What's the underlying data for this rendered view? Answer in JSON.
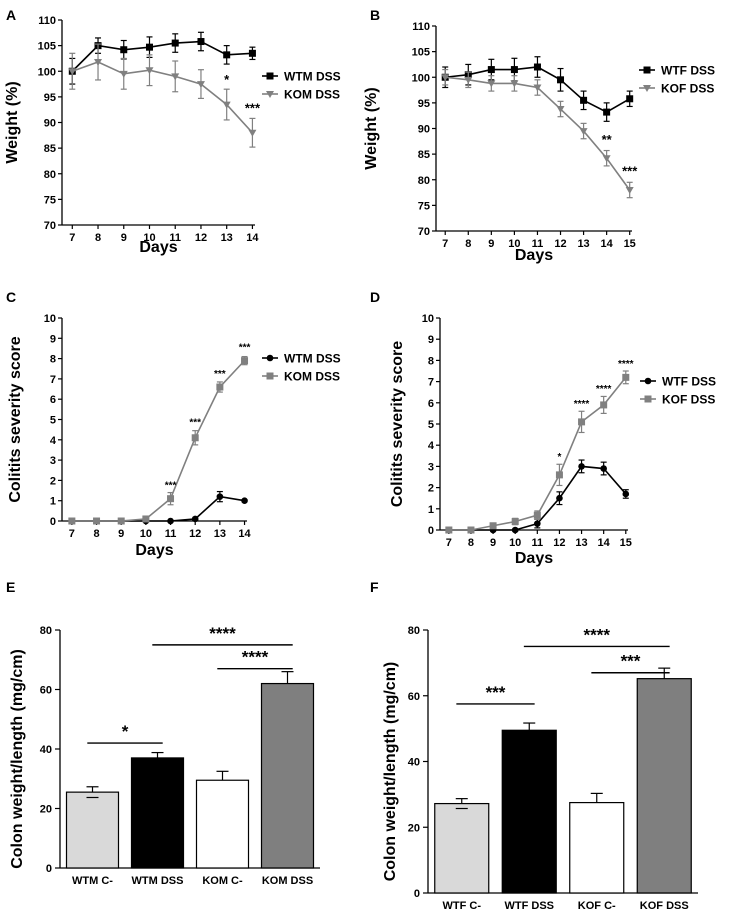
{
  "colors": {
    "black": "#000000",
    "gray": "#808080",
    "light_gray": "#d9d9d9",
    "white": "#ffffff",
    "mid_gray": "#7f7f7f"
  },
  "chart_data": [
    {
      "panel": "A",
      "type": "line",
      "xlabel": "Days",
      "ylabel": "Weight (%)",
      "x": [
        7,
        8,
        9,
        10,
        11,
        12,
        13,
        14
      ],
      "xticks": [
        7,
        8,
        9,
        10,
        11,
        12,
        13,
        14
      ],
      "yticks": [
        70,
        75,
        80,
        85,
        90,
        95,
        100,
        105,
        110
      ],
      "ylim": [
        70,
        110
      ],
      "series": [
        {
          "name": "WTM DSS",
          "color": "#000000",
          "marker": "square",
          "values": [
            100,
            105,
            104.2,
            104.7,
            105.5,
            105.8,
            103.2,
            103.5
          ],
          "errors": [
            2.5,
            1.5,
            1.8,
            2.0,
            1.8,
            1.8,
            1.8,
            1.2
          ]
        },
        {
          "name": "KOM DSS",
          "color": "#808080",
          "marker": "triangle-down",
          "values": [
            100,
            101.8,
            99.5,
            100.2,
            99.0,
            97.5,
            93.5,
            88.0
          ],
          "errors": [
            3.5,
            3.5,
            3.0,
            3.0,
            3.0,
            2.8,
            3.0,
            2.8
          ]
        }
      ],
      "annotations": [
        {
          "x": 13,
          "y": 97.5,
          "text": "*"
        },
        {
          "x": 14,
          "y": 92,
          "text": "***"
        }
      ]
    },
    {
      "panel": "B",
      "type": "line",
      "xlabel": "Days",
      "ylabel": "Weight (%)",
      "x": [
        7,
        8,
        9,
        10,
        11,
        12,
        13,
        14,
        15
      ],
      "xticks": [
        7,
        8,
        9,
        10,
        11,
        12,
        13,
        14,
        15
      ],
      "yticks": [
        70,
        75,
        80,
        85,
        90,
        95,
        100,
        105,
        110
      ],
      "ylim": [
        70,
        110
      ],
      "series": [
        {
          "name": "WTF DSS",
          "color": "#000000",
          "marker": "square",
          "values": [
            100,
            100.5,
            101.5,
            101.5,
            102,
            99.5,
            95.5,
            93.2,
            95.8
          ],
          "errors": [
            2.0,
            2.0,
            2.0,
            2.2,
            2.0,
            2.2,
            1.8,
            1.8,
            1.5
          ]
        },
        {
          "name": "KOF DSS",
          "color": "#808080",
          "marker": "triangle-down",
          "values": [
            100,
            99.5,
            98.8,
            98.8,
            98.0,
            93.8,
            89.5,
            84.2,
            78.0
          ],
          "errors": [
            1.5,
            1.5,
            1.5,
            1.5,
            1.5,
            1.5,
            1.5,
            1.5,
            1.5
          ]
        }
      ],
      "annotations": [
        {
          "x": 14,
          "y": 87,
          "text": "**"
        },
        {
          "x": 15,
          "y": 80.8,
          "text": "***"
        }
      ]
    },
    {
      "panel": "C",
      "type": "line",
      "xlabel": "Days",
      "ylabel": "Colitits severity score",
      "x": [
        7,
        8,
        9,
        10,
        11,
        12,
        13,
        14
      ],
      "xticks": [
        7,
        8,
        9,
        10,
        11,
        12,
        13,
        14
      ],
      "yticks": [
        0,
        1,
        2,
        3,
        4,
        5,
        6,
        7,
        8,
        9,
        10
      ],
      "ylim": [
        0,
        10
      ],
      "series": [
        {
          "name": "WTM DSS",
          "color": "#000000",
          "marker": "circle",
          "values": [
            0,
            0,
            0,
            0,
            0,
            0.1,
            1.2,
            1.0
          ],
          "errors": [
            0,
            0,
            0,
            0,
            0,
            0.05,
            0.25,
            0.05
          ]
        },
        {
          "name": "KOM DSS",
          "color": "#808080",
          "marker": "square",
          "values": [
            0,
            0,
            0,
            0.1,
            1.1,
            4.1,
            6.6,
            7.9
          ],
          "errors": [
            0,
            0,
            0,
            0.1,
            0.3,
            0.35,
            0.25,
            0.2
          ]
        }
      ],
      "annotations": [
        {
          "x": 11,
          "y": 1.6,
          "text": "***"
        },
        {
          "x": 12,
          "y": 4.7,
          "text": "***"
        },
        {
          "x": 13,
          "y": 7.1,
          "text": "***"
        },
        {
          "x": 14,
          "y": 8.4,
          "text": "***"
        }
      ]
    },
    {
      "panel": "D",
      "type": "line",
      "xlabel": "Days",
      "ylabel": "Colitits severity score",
      "x": [
        7,
        8,
        9,
        10,
        11,
        12,
        13,
        14,
        15
      ],
      "xticks": [
        7,
        8,
        9,
        10,
        11,
        12,
        13,
        14,
        15
      ],
      "yticks": [
        0,
        1,
        2,
        3,
        4,
        5,
        6,
        7,
        8,
        9,
        10
      ],
      "ylim": [
        0,
        10
      ],
      "series": [
        {
          "name": "WTF DSS",
          "color": "#000000",
          "marker": "circle",
          "values": [
            0,
            0,
            0,
            0,
            0.3,
            1.5,
            3.0,
            2.9,
            1.7
          ],
          "errors": [
            0,
            0,
            0.05,
            0.05,
            0.2,
            0.3,
            0.3,
            0.3,
            0.2
          ]
        },
        {
          "name": "KOF DSS",
          "color": "#808080",
          "marker": "square",
          "values": [
            0,
            0,
            0.2,
            0.4,
            0.7,
            2.6,
            5.1,
            5.9,
            7.2
          ],
          "errors": [
            0,
            0,
            0.1,
            0.15,
            0.2,
            0.5,
            0.5,
            0.4,
            0.3
          ]
        }
      ],
      "annotations": [
        {
          "x": 12,
          "y": 3.3,
          "text": "*"
        },
        {
          "x": 13,
          "y": 5.8,
          "text": "****"
        },
        {
          "x": 14,
          "y": 6.5,
          "text": "****"
        },
        {
          "x": 15,
          "y": 7.7,
          "text": "****"
        }
      ]
    },
    {
      "panel": "E",
      "type": "bar",
      "ylabel": "Colon weight/length (mg/cm)",
      "categories": [
        "WTM C-",
        "WTM DSS",
        "KOM C-",
        "KOM DSS"
      ],
      "values": [
        25.5,
        37.0,
        29.5,
        62.0
      ],
      "errors": [
        1.8,
        1.8,
        3.0,
        4.0
      ],
      "fills": [
        "#d9d9d9",
        "#000000",
        "#ffffff",
        "#7f7f7f"
      ],
      "yticks": [
        0,
        20,
        40,
        60,
        80
      ],
      "ylim": [
        0,
        80
      ],
      "brackets": [
        {
          "from": 0,
          "to": 1,
          "y": 42,
          "text": "*"
        },
        {
          "from": 1,
          "to": 3,
          "y": 75,
          "text": "****"
        },
        {
          "from": 2,
          "to": 3,
          "y": 67,
          "text": "****"
        }
      ]
    },
    {
      "panel": "F",
      "type": "bar",
      "ylabel": "Colon weight/length (mg/cm)",
      "categories": [
        "WTF C-",
        "WTF DSS",
        "KOF C-",
        "KOF DSS"
      ],
      "values": [
        27.2,
        49.5,
        27.5,
        65.2
      ],
      "errors": [
        1.5,
        2.2,
        2.8,
        3.2
      ],
      "fills": [
        "#d9d9d9",
        "#000000",
        "#ffffff",
        "#7f7f7f"
      ],
      "yticks": [
        0,
        20,
        40,
        60,
        80
      ],
      "ylim": [
        0,
        80
      ],
      "brackets": [
        {
          "from": 0,
          "to": 1,
          "y": 57.5,
          "text": "***"
        },
        {
          "from": 1,
          "to": 3,
          "y": 75,
          "text": "****"
        },
        {
          "from": 2,
          "to": 3,
          "y": 67,
          "text": "***"
        }
      ]
    }
  ]
}
